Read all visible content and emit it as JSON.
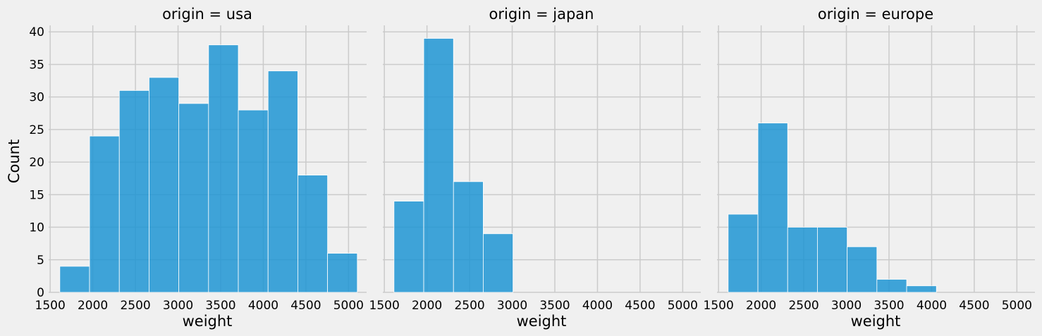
{
  "chart_data": {
    "type": "bar",
    "colors": {
      "bar": "#1f95d3",
      "background": "#f0f0f0",
      "grid": "#cbcbcb"
    },
    "grid": true,
    "xlim": [
      1482,
      5212
    ],
    "ylim": [
      0,
      41
    ],
    "x_ticks": [
      1500,
      2000,
      2500,
      3000,
      3500,
      4000,
      4500,
      5000
    ],
    "y_ticks": [
      0,
      5,
      10,
      15,
      20,
      25,
      30,
      35,
      40
    ],
    "bin_edges": [
      1613,
      1962,
      2311,
      2660,
      3009,
      3358,
      3707,
      4056,
      4405,
      4754,
      5103
    ],
    "ylabel": "Count",
    "facets": [
      {
        "title": "origin = usa",
        "xlabel": "weight",
        "values": [
          4,
          24,
          31,
          33,
          29,
          38,
          28,
          34,
          18,
          6
        ]
      },
      {
        "title": "origin = japan",
        "xlabel": "weight",
        "values": [
          14,
          39,
          17,
          9,
          0,
          0,
          0,
          0,
          0,
          0
        ]
      },
      {
        "title": "origin = europe",
        "xlabel": "weight",
        "values": [
          12,
          26,
          10,
          10,
          7,
          2,
          1,
          0,
          0,
          0
        ]
      }
    ]
  }
}
